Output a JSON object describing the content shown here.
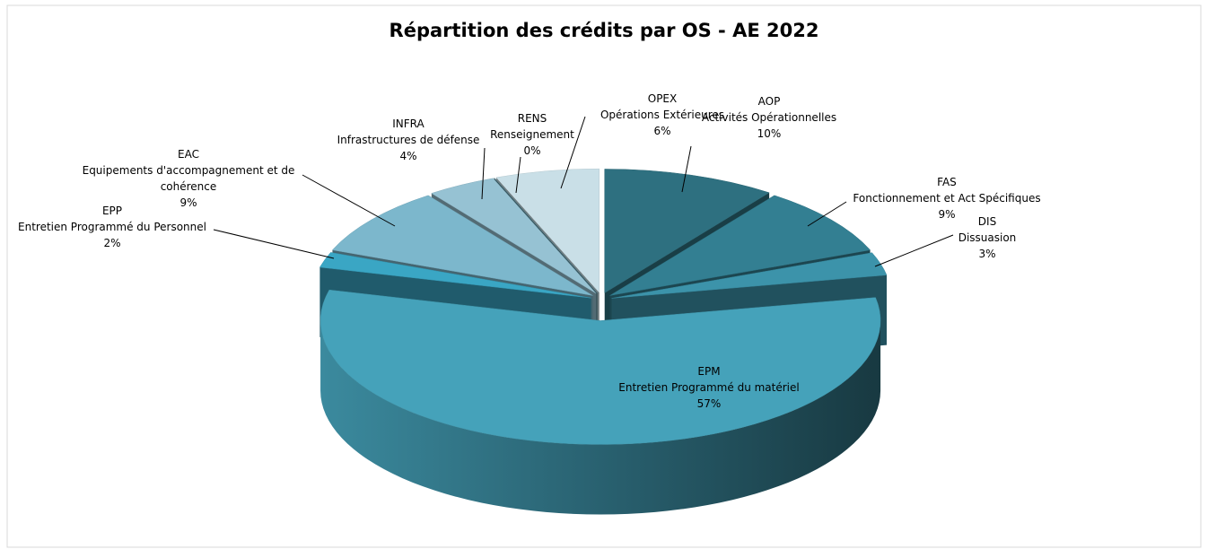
{
  "chart_data": {
    "type": "pie3d",
    "title": "Répartition des crédits par OS - AE 2022",
    "categories": [
      "AOP",
      "FAS",
      "DIS",
      "EPM",
      "EPP",
      "EAC",
      "INFRA",
      "RENS",
      "OPEX"
    ],
    "descriptions": [
      "Activités Opérationnelles",
      "Fonctionnement et Act Spécifiques",
      "Dissuasion",
      "Entretien Programmé du matériel",
      "Entretien Programmé du Personnel",
      "Equipements d'accompagnement et de cohérence",
      "Infrastructures de défense",
      "Renseignement",
      "Opérations Extérieures"
    ],
    "values": [
      10,
      9,
      3,
      57,
      2,
      9,
      4,
      0,
      6
    ],
    "value_labels": [
      "10%",
      "9%",
      "3%",
      "57%",
      "2%",
      "9%",
      "4%",
      "0%",
      "6%"
    ],
    "colors": [
      "#2e7080",
      "#337f92",
      "#3c93aa",
      "#45a2ba",
      "#3aa6c4",
      "#7cb7cc",
      "#96c2d3",
      "#5d8f9e",
      "#c9dfe7"
    ]
  }
}
